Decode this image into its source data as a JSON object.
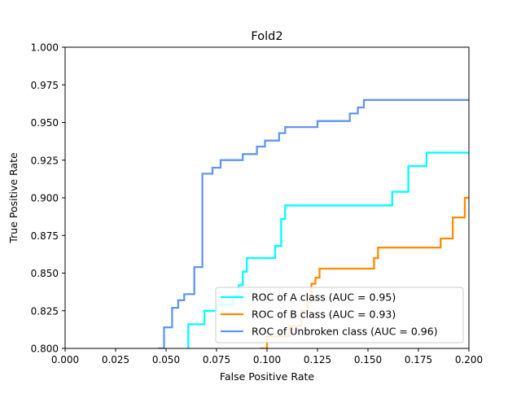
{
  "chart_data": {
    "type": "line",
    "title": "Fold2",
    "xlabel": "False Positive Rate",
    "ylabel": "True Positive Rate",
    "xlim": [
      0.0,
      0.2
    ],
    "ylim": [
      0.8,
      1.0
    ],
    "xticks": [
      "0.000",
      "0.025",
      "0.050",
      "0.075",
      "0.100",
      "0.125",
      "0.150",
      "0.175",
      "0.200"
    ],
    "yticks": [
      "0.800",
      "0.825",
      "0.850",
      "0.875",
      "0.900",
      "0.925",
      "0.950",
      "0.975",
      "1.000"
    ],
    "grid": false,
    "legend_position": "lower right",
    "series": [
      {
        "name": "ROC of A class (AUC = 0.95)",
        "color": "#00ffff",
        "points": [
          [
            0.061,
            0.795
          ],
          [
            0.061,
            0.816
          ],
          [
            0.069,
            0.816
          ],
          [
            0.069,
            0.825
          ],
          [
            0.075,
            0.825
          ],
          [
            0.075,
            0.829
          ],
          [
            0.083,
            0.829
          ],
          [
            0.083,
            0.835
          ],
          [
            0.086,
            0.835
          ],
          [
            0.086,
            0.842
          ],
          [
            0.088,
            0.842
          ],
          [
            0.088,
            0.851
          ],
          [
            0.09,
            0.851
          ],
          [
            0.09,
            0.86
          ],
          [
            0.104,
            0.86
          ],
          [
            0.104,
            0.868
          ],
          [
            0.107,
            0.868
          ],
          [
            0.107,
            0.886
          ],
          [
            0.109,
            0.886
          ],
          [
            0.109,
            0.895
          ],
          [
            0.162,
            0.895
          ],
          [
            0.162,
            0.904
          ],
          [
            0.17,
            0.904
          ],
          [
            0.17,
            0.921
          ],
          [
            0.179,
            0.921
          ],
          [
            0.179,
            0.93
          ],
          [
            0.2,
            0.93
          ]
        ]
      },
      {
        "name": "ROC of B class (AUC = 0.93)",
        "color": "#ff8c00",
        "points": [
          [
            0.097,
            0.795
          ],
          [
            0.097,
            0.8
          ],
          [
            0.1,
            0.8
          ],
          [
            0.1,
            0.808
          ],
          [
            0.111,
            0.808
          ],
          [
            0.111,
            0.815
          ],
          [
            0.117,
            0.815
          ],
          [
            0.117,
            0.825
          ],
          [
            0.12,
            0.825
          ],
          [
            0.12,
            0.834
          ],
          [
            0.122,
            0.834
          ],
          [
            0.122,
            0.843
          ],
          [
            0.124,
            0.843
          ],
          [
            0.124,
            0.847
          ],
          [
            0.126,
            0.847
          ],
          [
            0.126,
            0.853
          ],
          [
            0.153,
            0.853
          ],
          [
            0.153,
            0.86
          ],
          [
            0.155,
            0.86
          ],
          [
            0.155,
            0.867
          ],
          [
            0.186,
            0.867
          ],
          [
            0.186,
            0.873
          ],
          [
            0.192,
            0.873
          ],
          [
            0.192,
            0.887
          ],
          [
            0.198,
            0.887
          ],
          [
            0.198,
            0.9
          ],
          [
            0.2,
            0.9
          ]
        ]
      },
      {
        "name": "ROC of Unbroken class (AUC = 0.96)",
        "color": "#6495ed",
        "points": [
          [
            0.046,
            0.8
          ],
          [
            0.049,
            0.8
          ],
          [
            0.049,
            0.814
          ],
          [
            0.053,
            0.814
          ],
          [
            0.053,
            0.827
          ],
          [
            0.056,
            0.827
          ],
          [
            0.056,
            0.832
          ],
          [
            0.059,
            0.832
          ],
          [
            0.059,
            0.836
          ],
          [
            0.064,
            0.836
          ],
          [
            0.064,
            0.854
          ],
          [
            0.068,
            0.854
          ],
          [
            0.068,
            0.916
          ],
          [
            0.073,
            0.916
          ],
          [
            0.073,
            0.92
          ],
          [
            0.077,
            0.92
          ],
          [
            0.077,
            0.925
          ],
          [
            0.088,
            0.925
          ],
          [
            0.088,
            0.929
          ],
          [
            0.095,
            0.929
          ],
          [
            0.095,
            0.934
          ],
          [
            0.099,
            0.934
          ],
          [
            0.099,
            0.938
          ],
          [
            0.106,
            0.938
          ],
          [
            0.106,
            0.943
          ],
          [
            0.109,
            0.943
          ],
          [
            0.109,
            0.947
          ],
          [
            0.125,
            0.947
          ],
          [
            0.125,
            0.951
          ],
          [
            0.141,
            0.951
          ],
          [
            0.141,
            0.956
          ],
          [
            0.145,
            0.956
          ],
          [
            0.145,
            0.96
          ],
          [
            0.148,
            0.96
          ],
          [
            0.148,
            0.965
          ],
          [
            0.2,
            0.965
          ]
        ]
      }
    ]
  }
}
